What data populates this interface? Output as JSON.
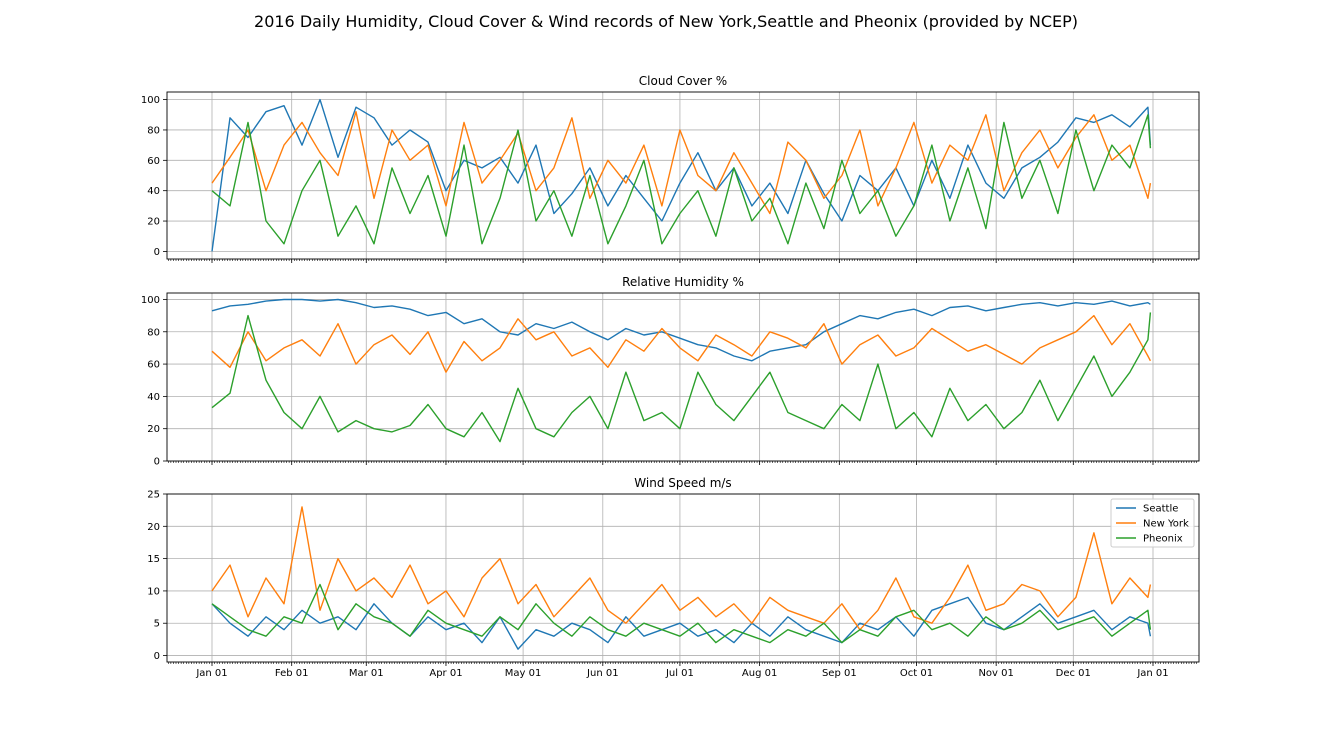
{
  "suptitle": "2016 Daily Humidity, Cloud Cover & Wind records of New York,Seattle and Pheonix (provided by NCEP)",
  "colors": {
    "Seattle": "#1f77b4",
    "New York": "#ff7f0e",
    "Pheonix": "#2ca02c"
  },
  "chart_data": [
    {
      "type": "line",
      "title": "Cloud Cover %",
      "xlabel": "",
      "ylabel": "",
      "ylim": [
        -5,
        105
      ],
      "yticks": [
        0,
        20,
        40,
        60,
        80,
        100
      ],
      "grid": true,
      "x_range": [
        "2016-01-01",
        "2016-12-31"
      ],
      "xtick_labels": [
        "Jan 01",
        "Feb 01",
        "Mar 01",
        "Apr 01",
        "May 01",
        "Jun 01",
        "Jul 01",
        "Aug 01",
        "Sep 01",
        "Oct 01",
        "Nov 01",
        "Dec 01",
        "Jan 01"
      ],
      "series": [
        {
          "name": "Seattle",
          "color": "#1f77b4",
          "x_start": "2016-01-01",
          "step_days": 7,
          "values": [
            0,
            88,
            75,
            92,
            96,
            70,
            100,
            62,
            95,
            88,
            70,
            80,
            72,
            40,
            60,
            55,
            62,
            45,
            70,
            25,
            38,
            55,
            30,
            50,
            35,
            20,
            45,
            65,
            40,
            55,
            30,
            45,
            25,
            60,
            38,
            20,
            50,
            40,
            55,
            30,
            60,
            35,
            70,
            45,
            35,
            55,
            62,
            72,
            88,
            85,
            90,
            82,
            95,
            70
          ]
        },
        {
          "name": "New York",
          "color": "#ff7f0e",
          "x_start": "2016-01-01",
          "step_days": 7,
          "values": [
            45,
            62,
            80,
            40,
            70,
            85,
            65,
            50,
            92,
            35,
            80,
            60,
            70,
            30,
            85,
            45,
            60,
            78,
            40,
            55,
            88,
            35,
            60,
            45,
            70,
            30,
            80,
            50,
            40,
            65,
            45,
            25,
            72,
            60,
            35,
            50,
            80,
            30,
            55,
            85,
            45,
            70,
            60,
            90,
            40,
            65,
            80,
            55,
            75,
            90,
            60,
            70,
            35,
            45
          ]
        },
        {
          "name": "Pheonix",
          "color": "#2ca02c",
          "x_start": "2016-01-01",
          "step_days": 7,
          "values": [
            40,
            30,
            85,
            20,
            5,
            40,
            60,
            10,
            30,
            5,
            55,
            25,
            50,
            10,
            70,
            5,
            35,
            80,
            20,
            40,
            10,
            50,
            5,
            30,
            60,
            5,
            25,
            40,
            10,
            55,
            20,
            35,
            5,
            45,
            15,
            60,
            25,
            40,
            10,
            30,
            70,
            20,
            55,
            15,
            85,
            35,
            60,
            25,
            80,
            40,
            70,
            55,
            90,
            68
          ]
        }
      ]
    },
    {
      "type": "line",
      "title": "Relative Humidity %",
      "xlabel": "",
      "ylabel": "",
      "ylim": [
        0,
        104
      ],
      "yticks": [
        0,
        20,
        40,
        60,
        80,
        100
      ],
      "grid": true,
      "x_range": [
        "2016-01-01",
        "2016-12-31"
      ],
      "xtick_labels": [
        "Jan 01",
        "Feb 01",
        "Mar 01",
        "Apr 01",
        "May 01",
        "Jun 01",
        "Jul 01",
        "Aug 01",
        "Sep 01",
        "Oct 01",
        "Nov 01",
        "Dec 01",
        "Jan 01"
      ],
      "series": [
        {
          "name": "Seattle",
          "color": "#1f77b4",
          "x_start": "2016-01-01",
          "step_days": 7,
          "values": [
            93,
            96,
            97,
            99,
            100,
            100,
            99,
            100,
            98,
            95,
            96,
            94,
            90,
            92,
            85,
            88,
            80,
            78,
            85,
            82,
            86,
            80,
            75,
            82,
            78,
            80,
            76,
            72,
            70,
            65,
            62,
            68,
            70,
            72,
            80,
            85,
            90,
            88,
            92,
            94,
            90,
            95,
            96,
            93,
            95,
            97,
            98,
            96,
            98,
            97,
            99,
            96,
            98,
            97
          ]
        },
        {
          "name": "New York",
          "color": "#ff7f0e",
          "x_start": "2016-01-01",
          "step_days": 7,
          "values": [
            68,
            58,
            80,
            62,
            70,
            75,
            65,
            85,
            60,
            72,
            78,
            66,
            80,
            55,
            74,
            62,
            70,
            88,
            75,
            80,
            65,
            70,
            58,
            75,
            68,
            82,
            70,
            62,
            78,
            72,
            65,
            80,
            76,
            70,
            85,
            60,
            72,
            78,
            65,
            70,
            82,
            75,
            68,
            72,
            66,
            60,
            70,
            75,
            80,
            90,
            72,
            85,
            65,
            62
          ]
        },
        {
          "name": "Pheonix",
          "color": "#2ca02c",
          "x_start": "2016-01-01",
          "step_days": 7,
          "values": [
            33,
            42,
            90,
            50,
            30,
            20,
            40,
            18,
            25,
            20,
            18,
            22,
            35,
            20,
            15,
            30,
            12,
            45,
            20,
            15,
            30,
            40,
            20,
            55,
            25,
            30,
            20,
            55,
            35,
            25,
            40,
            55,
            30,
            25,
            20,
            35,
            25,
            60,
            20,
            30,
            15,
            45,
            25,
            35,
            20,
            30,
            50,
            25,
            45,
            65,
            40,
            55,
            75,
            92
          ]
        }
      ]
    },
    {
      "type": "line",
      "title": "Wind Speed m/s",
      "xlabel": "",
      "ylabel": "",
      "ylim": [
        -1,
        25
      ],
      "yticks": [
        0,
        5,
        10,
        15,
        20,
        25
      ],
      "grid": true,
      "legend": "upper right",
      "x_range": [
        "2016-01-01",
        "2016-12-31"
      ],
      "xtick_labels": [
        "Jan 01",
        "Feb 01",
        "Mar 01",
        "Apr 01",
        "May 01",
        "Jun 01",
        "Jul 01",
        "Aug 01",
        "Sep 01",
        "Oct 01",
        "Nov 01",
        "Dec 01",
        "Jan 01"
      ],
      "series": [
        {
          "name": "Seattle",
          "color": "#1f77b4",
          "x_start": "2016-01-01",
          "step_days": 7,
          "values": [
            8,
            5,
            3,
            6,
            4,
            7,
            5,
            6,
            4,
            8,
            5,
            3,
            6,
            4,
            5,
            2,
            6,
            1,
            4,
            3,
            5,
            4,
            2,
            6,
            3,
            4,
            5,
            3,
            4,
            2,
            5,
            3,
            6,
            4,
            3,
            2,
            5,
            4,
            6,
            3,
            7,
            8,
            9,
            5,
            4,
            6,
            8,
            5,
            6,
            7,
            4,
            6,
            5,
            3
          ]
        },
        {
          "name": "New York",
          "color": "#ff7f0e",
          "x_start": "2016-01-01",
          "step_days": 7,
          "values": [
            10,
            14,
            6,
            12,
            8,
            23,
            7,
            15,
            10,
            12,
            9,
            14,
            8,
            10,
            6,
            12,
            15,
            8,
            11,
            6,
            9,
            12,
            7,
            5,
            8,
            11,
            7,
            9,
            6,
            8,
            5,
            9,
            7,
            6,
            5,
            8,
            4,
            7,
            12,
            6,
            5,
            9,
            14,
            7,
            8,
            11,
            10,
            6,
            9,
            19,
            8,
            12,
            9,
            11
          ]
        },
        {
          "name": "Pheonix",
          "color": "#2ca02c",
          "x_start": "2016-01-01",
          "step_days": 7,
          "values": [
            8,
            6,
            4,
            3,
            6,
            5,
            11,
            4,
            8,
            6,
            5,
            3,
            7,
            5,
            4,
            3,
            6,
            4,
            8,
            5,
            3,
            6,
            4,
            3,
            5,
            4,
            3,
            5,
            2,
            4,
            3,
            2,
            4,
            3,
            5,
            2,
            4,
            3,
            6,
            7,
            4,
            5,
            3,
            6,
            4,
            5,
            7,
            4,
            5,
            6,
            3,
            5,
            7,
            4
          ]
        }
      ]
    }
  ]
}
